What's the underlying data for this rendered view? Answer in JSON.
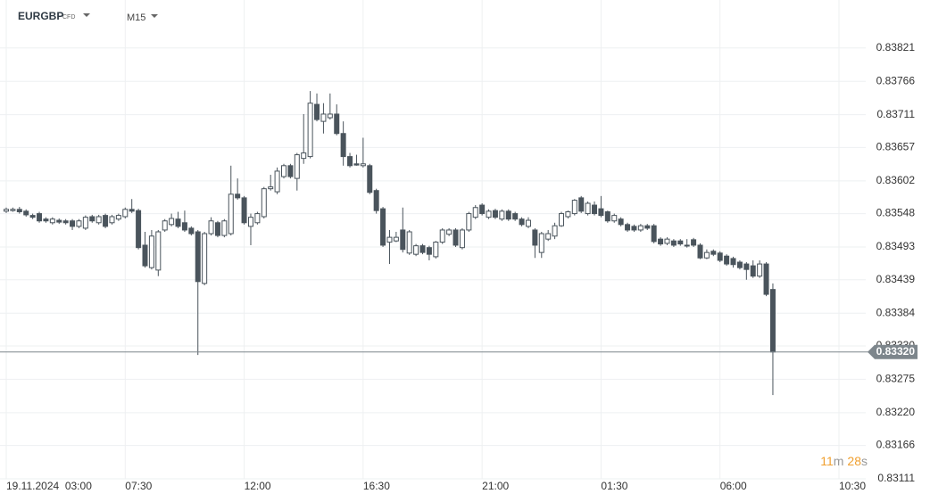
{
  "header": {
    "symbol": "EURGBP",
    "symbol_type": "CFD",
    "interval": "M15"
  },
  "timer": {
    "minutes": "11",
    "minutes_unit": "m",
    "seconds": "28",
    "seconds_unit": "s"
  },
  "chart_data": {
    "type": "candlestick",
    "up_color": "#ffffff",
    "down_color": "#4a545c",
    "outline_color": "#4a545c",
    "grid": true,
    "ylim": [
      0.83111,
      0.839
    ],
    "yticks": [
      0.83821,
      0.83766,
      0.83711,
      0.83657,
      0.83602,
      0.83548,
      0.83493,
      0.83439,
      0.83384,
      {
        "value": 0.8333,
        "label": "0.83330"
      },
      0.83275,
      {
        "value": 0.8322,
        "label": "0.83220"
      },
      0.83166,
      0.83111
    ],
    "current_price": {
      "value": 0.8332,
      "label": "0.83320"
    },
    "categories": [
      "19.11.2024  03:00",
      null,
      null,
      null,
      null,
      null,
      null,
      null,
      null,
      null,
      null,
      null,
      null,
      null,
      null,
      null,
      null,
      null,
      "07:30",
      null,
      null,
      null,
      null,
      null,
      null,
      null,
      null,
      null,
      null,
      null,
      null,
      null,
      null,
      null,
      null,
      null,
      "12:00",
      null,
      null,
      null,
      null,
      null,
      null,
      null,
      null,
      null,
      null,
      null,
      null,
      null,
      null,
      null,
      null,
      null,
      "16:30",
      null,
      null,
      null,
      null,
      null,
      null,
      null,
      null,
      null,
      null,
      null,
      null,
      null,
      null,
      null,
      null,
      null,
      "21:00",
      null,
      null,
      null,
      null,
      null,
      null,
      null,
      null,
      null,
      null,
      null,
      null,
      null,
      null,
      null,
      null,
      null,
      "01:30",
      null,
      null,
      null,
      null,
      null,
      null,
      null,
      null,
      null,
      null,
      null,
      null,
      null,
      null,
      null,
      null,
      null,
      "06:00",
      null,
      null,
      null,
      null,
      null,
      null,
      null,
      null,
      null,
      null,
      null,
      null,
      null,
      null,
      null,
      null,
      null,
      "10:30"
    ],
    "open": [
      0.83552,
      0.83553,
      0.83555,
      0.83552,
      0.83545,
      0.83548,
      0.83539,
      0.83533,
      0.83537,
      0.83536,
      0.83536,
      0.83527,
      0.83524,
      0.83543,
      0.83533,
      0.83545,
      0.83533,
      0.83539,
      0.83543,
      0.83555,
      0.83553,
      0.83496,
      0.83459,
      0.83455,
      0.83521,
      0.8353,
      0.83539,
      0.83533,
      0.83524,
      0.83518,
      0.83433,
      0.83515,
      0.83533,
      0.83512,
      0.83515,
      0.8358,
      0.83574,
      0.83527,
      0.83533,
      0.83543,
      0.83589,
      0.83584,
      0.83609,
      0.83627,
      0.83606,
      0.83639,
      0.83642,
      0.83728,
      0.837,
      0.83706,
      0.83712,
      0.8368,
      0.83642,
      0.8363,
      0.83627,
      0.83627,
      0.83586,
      0.83556,
      0.83501,
      0.83503,
      0.83521,
      0.83483,
      0.83481,
      0.83495,
      0.83492,
      0.83477,
      0.83501,
      0.83514,
      0.83521,
      0.83492,
      0.83521,
      0.83542,
      0.83562,
      0.83542,
      0.83553,
      0.83539,
      0.83552,
      0.83548,
      0.83539,
      0.83527,
      0.83521,
      0.83484,
      0.83506,
      0.83511,
      0.83528,
      0.83543,
      0.83548,
      0.83574,
      0.83548,
      0.83562,
      0.83556,
      0.83551,
      0.83536,
      0.83539,
      0.8353,
      0.83527,
      0.83521,
      0.83528,
      0.83528,
      0.83506,
      0.83499,
      0.83503,
      0.83503,
      0.83496,
      0.83505,
      0.83496,
      0.83475,
      0.83486,
      0.83483,
      0.83478,
      0.83474,
      0.83468,
      0.83465,
      0.83462,
      0.83445,
      0.83465,
      0.83423,
      null,
      null,
      null,
      null,
      null,
      null,
      null,
      null,
      null,
      null
    ],
    "high": [
      0.83558,
      0.83558,
      0.83559,
      0.83555,
      0.83548,
      0.83551,
      0.83542,
      0.83542,
      0.8354,
      0.83539,
      0.83539,
      0.83539,
      0.83545,
      0.83546,
      0.83546,
      0.83548,
      0.83546,
      0.83548,
      0.83558,
      0.83572,
      0.83556,
      0.83518,
      0.83521,
      0.83521,
      0.83539,
      0.83548,
      0.83551,
      0.83553,
      0.83527,
      0.83521,
      0.83518,
      0.83542,
      0.83536,
      0.83539,
      0.83627,
      0.83606,
      0.83577,
      0.83548,
      0.83551,
      0.83592,
      0.83612,
      0.83624,
      0.8363,
      0.8363,
      0.83648,
      0.83712,
      0.8375,
      0.83746,
      0.8373,
      0.83746,
      0.83728,
      0.837,
      0.83648,
      0.83645,
      0.83673,
      0.8363,
      0.83589,
      0.83559,
      0.83521,
      0.83518,
      0.83558,
      0.83521,
      0.83498,
      0.83498,
      0.83495,
      0.83503,
      0.83524,
      0.83524,
      0.83524,
      0.83524,
      0.83551,
      0.83562,
      0.83565,
      0.83555,
      0.83556,
      0.83555,
      0.83555,
      0.83551,
      0.83542,
      0.83542,
      0.83524,
      0.83518,
      0.83521,
      0.83533,
      0.83551,
      0.83553,
      0.83572,
      0.83577,
      0.83568,
      0.83568,
      0.83577,
      0.83553,
      0.83548,
      0.83542,
      0.83533,
      0.8353,
      0.83531,
      0.83531,
      0.83531,
      0.83509,
      0.83509,
      0.83506,
      0.83506,
      0.83506,
      0.83508,
      0.83499,
      0.83489,
      0.83489,
      0.83486,
      0.83481,
      0.83477,
      0.83471,
      0.83468,
      0.83471,
      0.83471,
      0.83468,
      0.83433,
      null,
      null,
      null,
      null,
      null,
      null,
      null,
      null,
      null,
      null
    ],
    "low": [
      0.83549,
      0.83551,
      0.83548,
      0.83543,
      0.83539,
      0.83533,
      0.83533,
      0.8353,
      0.83531,
      0.8353,
      0.83521,
      0.83524,
      0.83521,
      0.83533,
      0.8353,
      0.83524,
      0.8353,
      0.83536,
      0.8354,
      0.83549,
      0.83489,
      0.83459,
      0.83456,
      0.83445,
      0.83518,
      0.83527,
      0.83524,
      0.83518,
      0.83512,
      0.83315,
      0.8343,
      0.83512,
      0.83509,
      0.83509,
      0.83512,
      0.83571,
      0.8353,
      0.83496,
      0.8353,
      0.8354,
      0.83586,
      0.8358,
      0.83606,
      0.83606,
      0.83586,
      0.8363,
      0.83639,
      0.837,
      0.8368,
      0.83703,
      0.83677,
      0.83627,
      0.83624,
      0.83627,
      0.83624,
      0.8358,
      0.83548,
      0.83493,
      0.83465,
      0.83501,
      0.83484,
      0.8348,
      0.83478,
      0.83481,
      0.83471,
      0.83474,
      0.83498,
      0.83511,
      0.83493,
      0.83489,
      0.83518,
      0.83539,
      0.83545,
      0.83539,
      0.83539,
      0.83536,
      0.83536,
      0.83536,
      0.83527,
      0.83524,
      0.83475,
      0.83475,
      0.83503,
      0.83506,
      0.83526,
      0.8354,
      0.83545,
      0.83549,
      0.83545,
      0.83545,
      0.83542,
      0.83533,
      0.83533,
      0.83527,
      0.83518,
      0.83518,
      0.83518,
      0.83521,
      0.83499,
      0.83495,
      0.83496,
      0.83493,
      0.83495,
      0.83492,
      0.83493,
      0.83473,
      0.83473,
      0.83478,
      0.83468,
      0.83462,
      0.83459,
      0.83456,
      0.83439,
      0.83442,
      0.83442,
      0.83412,
      0.83249,
      null,
      null,
      null,
      null,
      null,
      null,
      null,
      null,
      null,
      null
    ],
    "close": [
      0.83555,
      0.83555,
      0.83551,
      0.83546,
      0.83542,
      0.83536,
      0.83536,
      0.83539,
      0.83534,
      0.83533,
      0.83527,
      0.83536,
      0.83542,
      0.83536,
      0.83543,
      0.83527,
      0.83543,
      0.83545,
      0.83555,
      0.83552,
      0.83492,
      0.83462,
      0.83511,
      0.83518,
      0.83536,
      0.8354,
      0.83527,
      0.83521,
      0.83515,
      0.83436,
      0.83515,
      0.83536,
      0.83512,
      0.83536,
      0.8358,
      0.83574,
      0.83533,
      0.83542,
      0.83548,
      0.83589,
      0.83592,
      0.83618,
      0.83627,
      0.83609,
      0.83645,
      0.83648,
      0.8373,
      0.83703,
      0.83712,
      0.83712,
      0.8368,
      0.83642,
      0.83627,
      0.83628,
      0.8363,
      0.83583,
      0.83553,
      0.83496,
      0.83509,
      0.83509,
      0.83489,
      0.83518,
      0.83495,
      0.83484,
      0.83481,
      0.83501,
      0.83521,
      0.83521,
      0.83496,
      0.83521,
      0.83548,
      0.83558,
      0.83548,
      0.83552,
      0.83542,
      0.83552,
      0.83539,
      0.83539,
      0.8353,
      0.83537,
      0.83496,
      0.83515,
      0.83515,
      0.83528,
      0.83548,
      0.83551,
      0.8357,
      0.83552,
      0.83565,
      0.83548,
      0.83545,
      0.83536,
      0.83545,
      0.8353,
      0.83521,
      0.83521,
      0.83528,
      0.83524,
      0.83502,
      0.83498,
      0.83506,
      0.83496,
      0.83498,
      0.83495,
      0.83496,
      0.83475,
      0.83484,
      0.83481,
      0.83471,
      0.83465,
      0.83464,
      0.83459,
      0.83456,
      0.83445,
      0.83465,
      0.83415,
      0.8332,
      null,
      null,
      null,
      null,
      null,
      null,
      null,
      null,
      null,
      null
    ]
  }
}
